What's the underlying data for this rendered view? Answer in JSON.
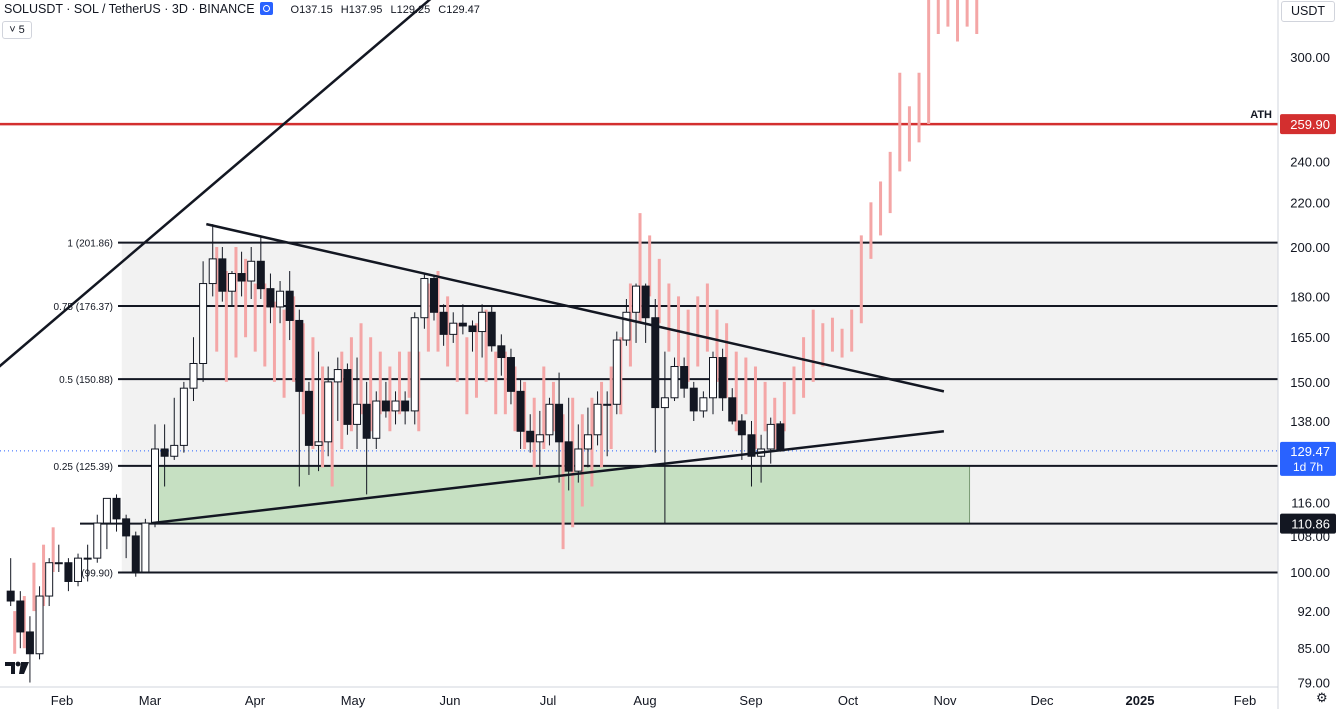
{
  "header": {
    "symbol": "SOLUSDT · SOL / TetherUS · 3D · BINANCE",
    "open_label": "O",
    "open": "137.15",
    "high_label": "H",
    "high": "137.95",
    "low_label": "L",
    "low": "129.25",
    "close_label": "C",
    "close": "129.47"
  },
  "controls": {
    "collapse_label": "˅ 5",
    "currency_button": "USDT",
    "settings_icon": "gear-icon"
  },
  "colors": {
    "ath_line": "#d32f2f",
    "up_candle": "#ffffff",
    "down_candle": "#131722",
    "projection": "#f4a6a6",
    "zone_fill": "#c6e0c2",
    "range_fill": "#f2f2f2",
    "price_tag": "#2962ff"
  },
  "chart_data": {
    "type": "candlestick",
    "price_scale": {
      "ticks": [
        "300.00",
        "240.00",
        "220.00",
        "200.00",
        "180.00",
        "165.00",
        "150.00",
        "138.00",
        "116.00",
        "108.00",
        "100.00",
        "92.00",
        "85.00",
        "79.00"
      ],
      "scale": "log"
    },
    "time_axis": [
      "Feb",
      "Mar",
      "Apr",
      "May",
      "Jun",
      "Jul",
      "Aug",
      "Sep",
      "Oct",
      "Nov",
      "Dec",
      "2025",
      "Feb"
    ],
    "horizontal_levels": [
      {
        "label": "1 (201.86)",
        "price": 201.86
      },
      {
        "label": "0.75 (176.37)",
        "price": 176.37
      },
      {
        "label": "0.5 (150.88)",
        "price": 150.88
      },
      {
        "label": "0.25 (125.39)",
        "price": 125.39
      },
      {
        "label": "(99.90)",
        "price": 99.9
      }
    ],
    "ath": {
      "label": "ATH",
      "price": "259.90",
      "value": 259.9
    },
    "support_tag": {
      "price": "110.86",
      "value": 110.86
    },
    "last_price": {
      "price": "129.47",
      "countdown": "1d 7h",
      "value": 129.47
    },
    "demand_zone": {
      "top": 125.39,
      "bottom": 110.86,
      "start": "2024-02-29",
      "end": "2024-11-10"
    },
    "range_box": {
      "top": 201.86,
      "bottom": 99.9,
      "start": "2024-02-29"
    },
    "trendlines": [
      {
        "name": "",
        "from": [
          "2023-12-26",
          140
        ],
        "to": [
          "2024-06-12",
          375
        ]
      },
      {
        "name": "",
        "from": [
          "2024-03-17",
          210
        ],
        "to": [
          "2024-11-02",
          147
        ]
      },
      {
        "name": "",
        "from": [
          "2024-02-29",
          111
        ],
        "to": [
          "2024-11-02",
          135
        ]
      }
    ],
    "candles": [
      {
        "t": "2024-01-16",
        "o": 96,
        "h": 103,
        "l": 93,
        "c": 94
      },
      {
        "t": "2024-01-19",
        "o": 94,
        "h": 96,
        "l": 85,
        "c": 88
      },
      {
        "t": "2024-01-22",
        "o": 88,
        "h": 91,
        "l": 79,
        "c": 84
      },
      {
        "t": "2024-01-25",
        "o": 84,
        "h": 97,
        "l": 83,
        "c": 95
      },
      {
        "t": "2024-01-28",
        "o": 95,
        "h": 103,
        "l": 93,
        "c": 102
      },
      {
        "t": "2024-01-31",
        "o": 102,
        "h": 106,
        "l": 100,
        "c": 102
      },
      {
        "t": "2024-02-03",
        "o": 102,
        "h": 103,
        "l": 96,
        "c": 98
      },
      {
        "t": "2024-02-06",
        "o": 98,
        "h": 104,
        "l": 97,
        "c": 103
      },
      {
        "t": "2024-02-09",
        "o": 103,
        "h": 106,
        "l": 98,
        "c": 103
      },
      {
        "t": "2024-02-12",
        "o": 103,
        "h": 113,
        "l": 102,
        "c": 111
      },
      {
        "t": "2024-02-15",
        "o": 111,
        "h": 117,
        "l": 105,
        "c": 117
      },
      {
        "t": "2024-02-18",
        "o": 117,
        "h": 118,
        "l": 109,
        "c": 112
      },
      {
        "t": "2024-02-21",
        "o": 112,
        "h": 113,
        "l": 103,
        "c": 108
      },
      {
        "t": "2024-02-24",
        "o": 108,
        "h": 109,
        "l": 99,
        "c": 100
      },
      {
        "t": "2024-02-27",
        "o": 100,
        "h": 112,
        "l": 100,
        "c": 111
      },
      {
        "t": "2024-03-01",
        "o": 111,
        "h": 137,
        "l": 110,
        "c": 130
      },
      {
        "t": "2024-03-04",
        "o": 130,
        "h": 137,
        "l": 120,
        "c": 128
      },
      {
        "t": "2024-03-07",
        "o": 128,
        "h": 145,
        "l": 127,
        "c": 131
      },
      {
        "t": "2024-03-10",
        "o": 131,
        "h": 150,
        "l": 129,
        "c": 148
      },
      {
        "t": "2024-03-13",
        "o": 148,
        "h": 165,
        "l": 144,
        "c": 156
      },
      {
        "t": "2024-03-16",
        "o": 156,
        "h": 194,
        "l": 150,
        "c": 185
      },
      {
        "t": "2024-03-19",
        "o": 185,
        "h": 210,
        "l": 180,
        "c": 195
      },
      {
        "t": "2024-03-22",
        "o": 195,
        "h": 200,
        "l": 178,
        "c": 182
      },
      {
        "t": "2024-03-25",
        "o": 182,
        "h": 190,
        "l": 176,
        "c": 189
      },
      {
        "t": "2024-03-28",
        "o": 189,
        "h": 198,
        "l": 180,
        "c": 186
      },
      {
        "t": "2024-03-31",
        "o": 186,
        "h": 200,
        "l": 179,
        "c": 194
      },
      {
        "t": "2024-04-03",
        "o": 194,
        "h": 205,
        "l": 179,
        "c": 183
      },
      {
        "t": "2024-04-06",
        "o": 183,
        "h": 189,
        "l": 170,
        "c": 176
      },
      {
        "t": "2024-04-09",
        "o": 176,
        "h": 186,
        "l": 170,
        "c": 182
      },
      {
        "t": "2024-04-12",
        "o": 182,
        "h": 190,
        "l": 164,
        "c": 171
      },
      {
        "t": "2024-04-15",
        "o": 171,
        "h": 175,
        "l": 120,
        "c": 147
      },
      {
        "t": "2024-04-18",
        "o": 147,
        "h": 150,
        "l": 123,
        "c": 131
      },
      {
        "t": "2024-04-21",
        "o": 131,
        "h": 160,
        "l": 124,
        "c": 132
      },
      {
        "t": "2024-04-24",
        "o": 132,
        "h": 155,
        "l": 128,
        "c": 150
      },
      {
        "t": "2024-04-27",
        "o": 150,
        "h": 158,
        "l": 138,
        "c": 154
      },
      {
        "t": "2024-04-30",
        "o": 154,
        "h": 156,
        "l": 134,
        "c": 137
      },
      {
        "t": "2024-05-03",
        "o": 137,
        "h": 158,
        "l": 130,
        "c": 143
      },
      {
        "t": "2024-05-06",
        "o": 143,
        "h": 150,
        "l": 118,
        "c": 133
      },
      {
        "t": "2024-05-09",
        "o": 133,
        "h": 147,
        "l": 130,
        "c": 144
      },
      {
        "t": "2024-05-12",
        "o": 144,
        "h": 150,
        "l": 139,
        "c": 141
      },
      {
        "t": "2024-05-15",
        "o": 141,
        "h": 147,
        "l": 137,
        "c": 144
      },
      {
        "t": "2024-05-18",
        "o": 144,
        "h": 147,
        "l": 137,
        "c": 141
      },
      {
        "t": "2024-05-21",
        "o": 141,
        "h": 174,
        "l": 137,
        "c": 172
      },
      {
        "t": "2024-05-24",
        "o": 172,
        "h": 189,
        "l": 168,
        "c": 187
      },
      {
        "t": "2024-05-27",
        "o": 187,
        "h": 188,
        "l": 171,
        "c": 174
      },
      {
        "t": "2024-05-30",
        "o": 174,
        "h": 177,
        "l": 162,
        "c": 166
      },
      {
        "t": "2024-06-02",
        "o": 166,
        "h": 174,
        "l": 163,
        "c": 170
      },
      {
        "t": "2024-06-05",
        "o": 170,
        "h": 177,
        "l": 166,
        "c": 169
      },
      {
        "t": "2024-06-08",
        "o": 169,
        "h": 171,
        "l": 160,
        "c": 167
      },
      {
        "t": "2024-06-11",
        "o": 167,
        "h": 177,
        "l": 158,
        "c": 174
      },
      {
        "t": "2024-06-14",
        "o": 174,
        "h": 176,
        "l": 160,
        "c": 162
      },
      {
        "t": "2024-06-17",
        "o": 162,
        "h": 166,
        "l": 152,
        "c": 158
      },
      {
        "t": "2024-06-20",
        "o": 158,
        "h": 161,
        "l": 143,
        "c": 147
      },
      {
        "t": "2024-06-23",
        "o": 147,
        "h": 151,
        "l": 130,
        "c": 135
      },
      {
        "t": "2024-06-26",
        "o": 135,
        "h": 140,
        "l": 129,
        "c": 132
      },
      {
        "t": "2024-06-29",
        "o": 132,
        "h": 141,
        "l": 123,
        "c": 134
      },
      {
        "t": "2024-07-02",
        "o": 134,
        "h": 145,
        "l": 131,
        "c": 143
      },
      {
        "t": "2024-07-05",
        "o": 143,
        "h": 153,
        "l": 121,
        "c": 132
      },
      {
        "t": "2024-07-08",
        "o": 132,
        "h": 145,
        "l": 119,
        "c": 124
      },
      {
        "t": "2024-07-11",
        "o": 124,
        "h": 137,
        "l": 121,
        "c": 130
      },
      {
        "t": "2024-07-14",
        "o": 130,
        "h": 142,
        "l": 125,
        "c": 134
      },
      {
        "t": "2024-07-17",
        "o": 134,
        "h": 147,
        "l": 131,
        "c": 143
      },
      {
        "t": "2024-07-20",
        "o": 143,
        "h": 147,
        "l": 128,
        "c": 143
      },
      {
        "t": "2024-07-23",
        "o": 143,
        "h": 167,
        "l": 140,
        "c": 164
      },
      {
        "t": "2024-07-26",
        "o": 164,
        "h": 179,
        "l": 162,
        "c": 174
      },
      {
        "t": "2024-07-29",
        "o": 174,
        "h": 185,
        "l": 163,
        "c": 184
      },
      {
        "t": "2024-08-01",
        "o": 184,
        "h": 185,
        "l": 163,
        "c": 172
      },
      {
        "t": "2024-08-04",
        "o": 172,
        "h": 179,
        "l": 129,
        "c": 142
      },
      {
        "t": "2024-08-07",
        "o": 142,
        "h": 160,
        "l": 111,
        "c": 145
      },
      {
        "t": "2024-08-10",
        "o": 145,
        "h": 158,
        "l": 144,
        "c": 155
      },
      {
        "t": "2024-08-13",
        "o": 155,
        "h": 158,
        "l": 145,
        "c": 148
      },
      {
        "t": "2024-08-16",
        "o": 148,
        "h": 150,
        "l": 138,
        "c": 141
      },
      {
        "t": "2024-08-19",
        "o": 141,
        "h": 147,
        "l": 139,
        "c": 145
      },
      {
        "t": "2024-08-22",
        "o": 145,
        "h": 160,
        "l": 140,
        "c": 158
      },
      {
        "t": "2024-08-25",
        "o": 158,
        "h": 161,
        "l": 141,
        "c": 145
      },
      {
        "t": "2024-08-28",
        "o": 145,
        "h": 148,
        "l": 137,
        "c": 138
      },
      {
        "t": "2024-08-31",
        "o": 138,
        "h": 140,
        "l": 127,
        "c": 134
      },
      {
        "t": "2024-09-03",
        "o": 134,
        "h": 138,
        "l": 120,
        "c": 128
      },
      {
        "t": "2024-09-06",
        "o": 128,
        "h": 134,
        "l": 121,
        "c": 130
      },
      {
        "t": "2024-09-09",
        "o": 130,
        "h": 139,
        "l": 126,
        "c": 137
      },
      {
        "t": "2024-09-12",
        "o": 137.15,
        "h": 137.95,
        "l": 129.25,
        "c": 129.47
      }
    ],
    "projection": [
      {
        "t": "2024-01-16",
        "l": 84,
        "h": 92
      },
      {
        "t": "2024-01-19",
        "l": 85,
        "h": 95
      },
      {
        "t": "2024-01-22",
        "l": 92,
        "h": 102
      },
      {
        "t": "2024-01-25",
        "l": 93,
        "h": 106
      },
      {
        "t": "2024-01-28",
        "l": 100,
        "h": 110
      },
      {
        "t": "2024-03-19",
        "l": 160,
        "h": 200
      },
      {
        "t": "2024-03-22",
        "l": 150,
        "h": 190
      },
      {
        "t": "2024-03-25",
        "l": 158,
        "h": 200
      },
      {
        "t": "2024-03-28",
        "l": 165,
        "h": 195
      },
      {
        "t": "2024-03-31",
        "l": 160,
        "h": 185
      },
      {
        "t": "2024-04-03",
        "l": 155,
        "h": 185
      },
      {
        "t": "2024-04-06",
        "l": 150,
        "h": 178
      },
      {
        "t": "2024-04-09",
        "l": 145,
        "h": 175
      },
      {
        "t": "2024-04-12",
        "l": 150,
        "h": 180
      },
      {
        "t": "2024-04-15",
        "l": 140,
        "h": 170
      },
      {
        "t": "2024-04-18",
        "l": 130,
        "h": 165
      },
      {
        "t": "2024-04-21",
        "l": 125,
        "h": 155
      },
      {
        "t": "2024-04-24",
        "l": 120,
        "h": 150
      },
      {
        "t": "2024-04-27",
        "l": 130,
        "h": 160
      },
      {
        "t": "2024-04-30",
        "l": 135,
        "h": 165
      },
      {
        "t": "2024-05-03",
        "l": 140,
        "h": 170
      },
      {
        "t": "2024-05-06",
        "l": 135,
        "h": 165
      },
      {
        "t": "2024-05-09",
        "l": 140,
        "h": 160
      },
      {
        "t": "2024-05-12",
        "l": 135,
        "h": 155
      },
      {
        "t": "2024-05-15",
        "l": 140,
        "h": 160
      },
      {
        "t": "2024-05-18",
        "l": 145,
        "h": 160
      },
      {
        "t": "2024-05-21",
        "l": 135,
        "h": 160
      },
      {
        "t": "2024-05-24",
        "l": 160,
        "h": 185
      },
      {
        "t": "2024-05-27",
        "l": 160,
        "h": 190
      },
      {
        "t": "2024-05-30",
        "l": 155,
        "h": 180
      },
      {
        "t": "2024-06-02",
        "l": 150,
        "h": 170
      },
      {
        "t": "2024-06-05",
        "l": 140,
        "h": 165
      },
      {
        "t": "2024-06-08",
        "l": 145,
        "h": 170
      },
      {
        "t": "2024-06-11",
        "l": 150,
        "h": 175
      },
      {
        "t": "2024-06-14",
        "l": 140,
        "h": 160
      },
      {
        "t": "2024-06-17",
        "l": 140,
        "h": 160
      },
      {
        "t": "2024-06-20",
        "l": 135,
        "h": 155
      },
      {
        "t": "2024-06-23",
        "l": 130,
        "h": 150
      },
      {
        "t": "2024-06-26",
        "l": 125,
        "h": 145
      },
      {
        "t": "2024-06-29",
        "l": 130,
        "h": 155
      },
      {
        "t": "2024-07-02",
        "l": 135,
        "h": 150
      },
      {
        "t": "2024-07-05",
        "l": 105,
        "h": 140
      },
      {
        "t": "2024-07-08",
        "l": 110,
        "h": 145
      },
      {
        "t": "2024-07-11",
        "l": 115,
        "h": 140
      },
      {
        "t": "2024-07-14",
        "l": 120,
        "h": 145
      },
      {
        "t": "2024-07-17",
        "l": 125,
        "h": 150
      },
      {
        "t": "2024-07-20",
        "l": 130,
        "h": 155
      },
      {
        "t": "2024-07-23",
        "l": 140,
        "h": 165
      },
      {
        "t": "2024-07-26",
        "l": 155,
        "h": 185
      },
      {
        "t": "2024-07-29",
        "l": 170,
        "h": 215
      },
      {
        "t": "2024-08-01",
        "l": 180,
        "h": 205
      },
      {
        "t": "2024-08-04",
        "l": 170,
        "h": 195
      },
      {
        "t": "2024-08-07",
        "l": 160,
        "h": 185
      },
      {
        "t": "2024-08-10",
        "l": 155,
        "h": 180
      },
      {
        "t": "2024-08-13",
        "l": 150,
        "h": 175
      },
      {
        "t": "2024-08-16",
        "l": 155,
        "h": 180
      },
      {
        "t": "2024-08-19",
        "l": 160,
        "h": 185
      },
      {
        "t": "2024-08-22",
        "l": 150,
        "h": 175
      },
      {
        "t": "2024-08-25",
        "l": 145,
        "h": 170
      },
      {
        "t": "2024-08-28",
        "l": 135,
        "h": 160
      },
      {
        "t": "2024-08-31",
        "l": 140,
        "h": 158
      },
      {
        "t": "2024-09-03",
        "l": 130,
        "h": 155
      },
      {
        "t": "2024-09-06",
        "l": 135,
        "h": 150
      },
      {
        "t": "2024-09-09",
        "l": 130,
        "h": 145
      },
      {
        "t": "2024-09-12",
        "l": 135,
        "h": 150
      },
      {
        "t": "2024-09-15",
        "l": 140,
        "h": 155
      },
      {
        "t": "2024-09-18",
        "l": 145,
        "h": 165
      },
      {
        "t": "2024-09-21",
        "l": 150,
        "h": 175
      },
      {
        "t": "2024-09-24",
        "l": 155,
        "h": 170
      },
      {
        "t": "2024-09-27",
        "l": 160,
        "h": 172
      },
      {
        "t": "2024-09-30",
        "l": 158,
        "h": 168
      },
      {
        "t": "2024-10-03",
        "l": 160,
        "h": 175
      },
      {
        "t": "2024-10-06",
        "l": 170,
        "h": 205
      },
      {
        "t": "2024-10-09",
        "l": 195,
        "h": 220
      },
      {
        "t": "2024-10-12",
        "l": 205,
        "h": 230
      },
      {
        "t": "2024-10-15",
        "l": 215,
        "h": 245
      },
      {
        "t": "2024-10-18",
        "l": 235,
        "h": 290
      },
      {
        "t": "2024-10-21",
        "l": 240,
        "h": 270
      },
      {
        "t": "2024-10-24",
        "l": 250,
        "h": 290
      },
      {
        "t": "2024-10-27",
        "l": 260,
        "h": 340
      },
      {
        "t": "2024-10-30",
        "l": 315,
        "h": 340
      },
      {
        "t": "2024-11-02",
        "l": 320,
        "h": 340
      },
      {
        "t": "2024-11-05",
        "l": 310,
        "h": 340
      },
      {
        "t": "2024-11-08",
        "l": 320,
        "h": 340
      },
      {
        "t": "2024-11-11",
        "l": 315,
        "h": 340
      }
    ]
  }
}
